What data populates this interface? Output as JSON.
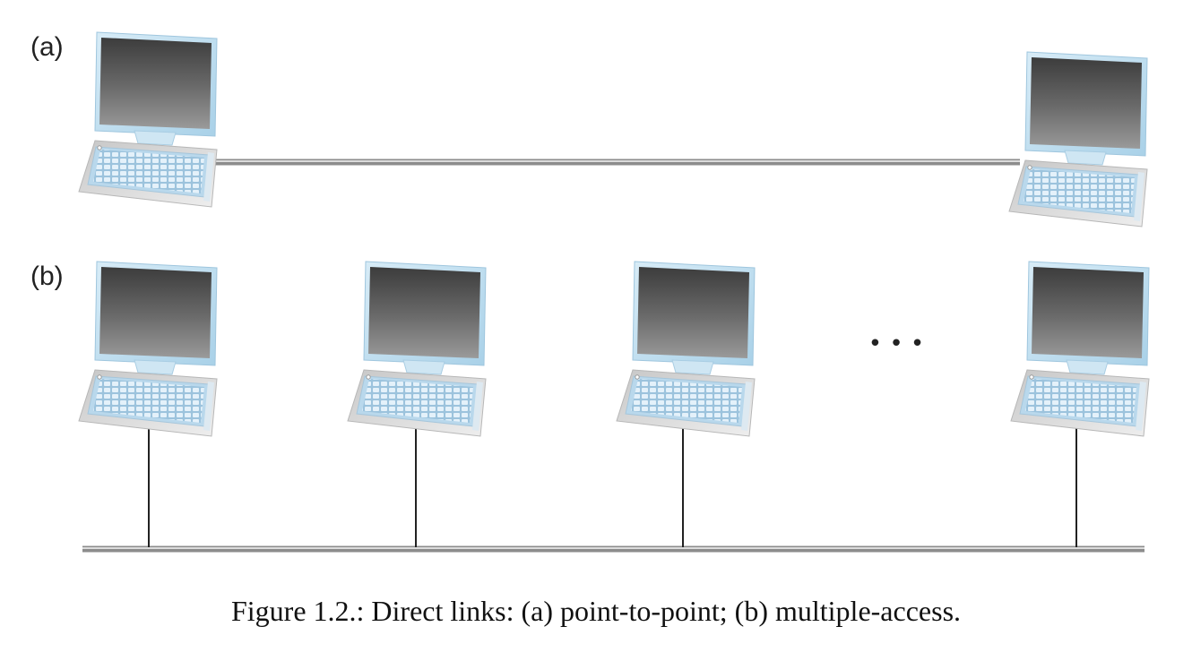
{
  "panels": {
    "a": {
      "label": "(a)"
    },
    "b": {
      "label": "(b)"
    }
  },
  "ellipsis": "• • •",
  "caption": "Figure 1.2.: Direct links: (a) point-to-point; (b) multiple-access.",
  "icons": {
    "node": "desktop-computer-icon"
  },
  "colors": {
    "cable": "#9a9a9a",
    "drop_line": "#222222",
    "screen_frame": "#bcdcee"
  }
}
